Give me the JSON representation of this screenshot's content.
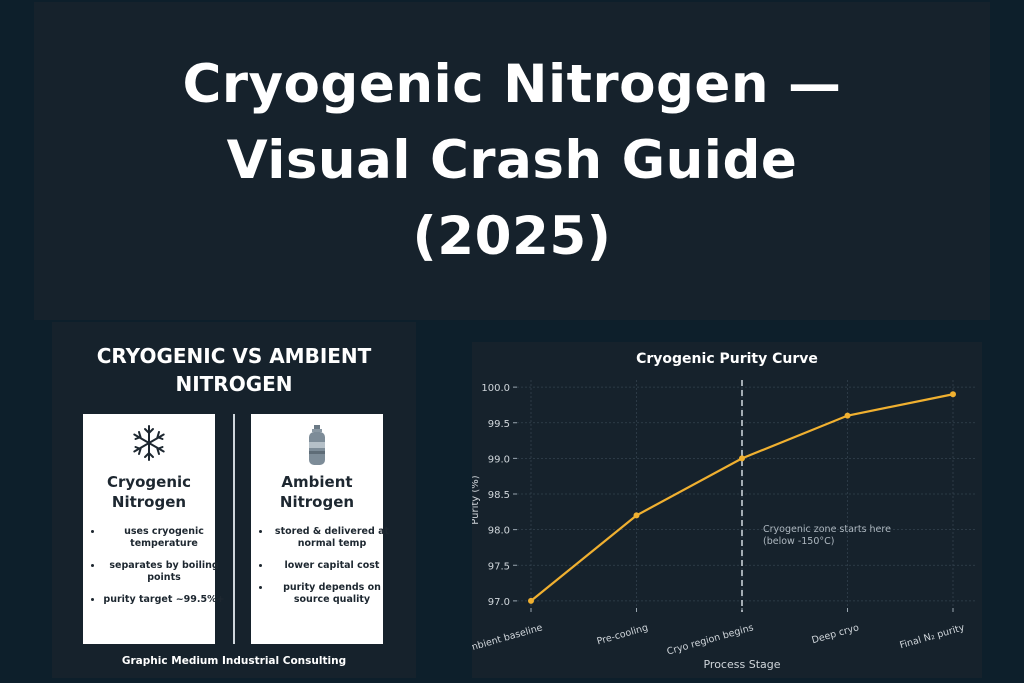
{
  "hero": {
    "title_lines": [
      "Cryogenic Nitrogen —",
      "Visual Crash Guide",
      "(2025)"
    ]
  },
  "comparison": {
    "title_lines": [
      "CRYOGENIC VS AMBIENT",
      "NITROGEN"
    ],
    "cryogenic": {
      "icon": "snowflake-icon",
      "title_lines": [
        "Cryogenic",
        "Nitrogen"
      ],
      "bullets": [
        "uses cryogenic temperature",
        "separates by boiling points",
        "purity target ~99.5%+"
      ]
    },
    "ambient": {
      "icon": "gas-cylinder-icon",
      "title_lines": [
        "Ambient",
        "Nitrogen"
      ],
      "bullets": [
        "stored & delivered at normal temp",
        "lower capital cost",
        "purity depends on source quality"
      ]
    },
    "credit": "Graphic Medium Industrial Consulting"
  },
  "chart_data": {
    "type": "line",
    "title": "Cryogenic Purity Curve",
    "xlabel": "Process Stage",
    "ylabel": "Purity (%)",
    "categories": [
      "Ambient baseline",
      "Pre-cooling",
      "Cryo region begins",
      "Deep cryo",
      "Final N₂ purity"
    ],
    "series": [
      {
        "values": [
          97.0,
          98.2,
          99.0,
          99.6,
          99.9
        ],
        "color": "#f0b030"
      }
    ],
    "ylim": [
      96.9,
      100.1
    ],
    "yticks": [
      "97.0",
      "97.5",
      "98.0",
      "98.5",
      "99.0",
      "99.5",
      "100.0"
    ],
    "grid": true,
    "marker_line": {
      "category_index": 2,
      "style": "dashed"
    },
    "annotation_lines": [
      "Cryogenic zone starts here",
      "(below -150°C)"
    ]
  }
}
